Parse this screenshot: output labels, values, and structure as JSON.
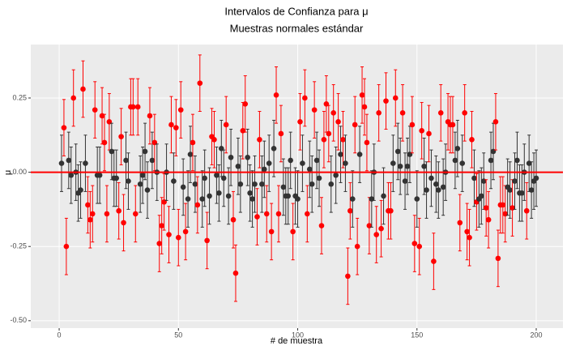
{
  "chart_data": {
    "type": "errorbar",
    "title": "Intervalos de Confianza para  μ",
    "subtitle": "Muestras normales estándar",
    "x_label": "# de muestra",
    "y_label": "μ",
    "x": [
      1,
      2,
      3,
      4,
      5,
      6,
      7,
      8,
      9,
      10,
      11,
      12,
      13,
      14,
      15,
      16,
      17,
      18,
      19,
      20,
      21,
      22,
      23,
      24,
      25,
      26,
      27,
      28,
      29,
      30,
      31,
      32,
      33,
      34,
      35,
      36,
      37,
      38,
      39,
      40,
      41,
      42,
      43,
      44,
      45,
      46,
      47,
      48,
      49,
      50,
      51,
      52,
      53,
      54,
      55,
      56,
      57,
      58,
      59,
      60,
      61,
      62,
      63,
      64,
      65,
      66,
      67,
      68,
      69,
      70,
      71,
      72,
      73,
      74,
      75,
      76,
      77,
      78,
      79,
      80,
      81,
      82,
      83,
      84,
      85,
      86,
      87,
      88,
      89,
      90,
      91,
      92,
      93,
      94,
      95,
      96,
      97,
      98,
      99,
      100,
      101,
      102,
      103,
      104,
      105,
      106,
      107,
      108,
      109,
      110,
      111,
      112,
      113,
      114,
      115,
      116,
      117,
      118,
      119,
      120,
      121,
      122,
      123,
      124,
      125,
      126,
      127,
      128,
      129,
      130,
      131,
      132,
      133,
      134,
      135,
      136,
      137,
      138,
      139,
      140,
      141,
      142,
      143,
      144,
      145,
      146,
      147,
      148,
      149,
      150,
      151,
      152,
      153,
      154,
      155,
      156,
      157,
      158,
      159,
      160,
      161,
      162,
      163,
      164,
      165,
      166,
      167,
      168,
      169,
      170,
      171,
      172,
      173,
      174,
      175,
      176,
      177,
      178,
      179,
      180,
      181,
      182,
      183,
      184,
      185,
      186,
      187,
      188,
      189,
      190,
      191,
      192,
      193,
      194,
      195,
      196,
      197,
      198,
      199,
      200
    ],
    "values": [
      0.03,
      0.15,
      -0.25,
      0.04,
      -0.01,
      0.25,
      0.0,
      -0.07,
      -0.06,
      0.28,
      0.03,
      -0.11,
      -0.16,
      -0.14,
      0.21,
      -0.01,
      -0.01,
      0.19,
      0.1,
      -0.14,
      0.17,
      0.07,
      -0.02,
      -0.02,
      -0.13,
      0.12,
      -0.17,
      0.04,
      -0.03,
      0.22,
      0.22,
      -0.14,
      0.22,
      -0.04,
      -0.01,
      0.07,
      -0.06,
      0.19,
      0.04,
      0.1,
      0.0,
      -0.24,
      -0.18,
      -0.1,
      0.0,
      -0.21,
      0.16,
      -0.03,
      0.15,
      -0.22,
      0.21,
      -0.05,
      -0.2,
      -0.09,
      0.06,
      0.1,
      -0.04,
      -0.11,
      0.3,
      -0.09,
      -0.02,
      -0.23,
      -0.08,
      0.12,
      0.11,
      -0.01,
      -0.07,
      0.08,
      -0.02,
      0.16,
      -0.08,
      0.05,
      -0.16,
      -0.34,
      0.02,
      -0.04,
      0.14,
      0.23,
      0.05,
      -0.07,
      -0.09,
      -0.04,
      -0.15,
      0.11,
      -0.04,
      0.01,
      -0.14,
      0.03,
      -0.2,
      0.08,
      0.26,
      -0.14,
      0.13,
      -0.05,
      -0.08,
      -0.08,
      0.04,
      -0.2,
      -0.08,
      -0.09,
      0.17,
      0.03,
      0.25,
      -0.14,
      0.01,
      -0.04,
      0.21,
      0.04,
      -0.02,
      -0.18,
      0.11,
      0.23,
      0.13,
      -0.04,
      0.2,
      -0.01,
      0.17,
      0.06,
      0.11,
      0.03,
      -0.35,
      -0.13,
      -0.09,
      0.16,
      -0.25,
      0.06,
      0.26,
      0.22,
      0.1,
      -0.18,
      -0.09,
      0.0,
      -0.21,
      0.2,
      -0.19,
      -0.08,
      0.24,
      -0.13,
      -0.13,
      0.03,
      0.25,
      0.07,
      0.02,
      0.2,
      -0.03,
      0.02,
      0.06,
      0.16,
      -0.24,
      -0.09,
      -0.25,
      0.14,
      0.02,
      -0.06,
      0.13,
      -0.02,
      -0.3,
      -0.04,
      -0.06,
      0.2,
      -0.05,
      0.0,
      0.17,
      0.16,
      0.16,
      0.04,
      0.08,
      -0.17,
      0.03,
      0.2,
      -0.2,
      -0.22,
      0.11,
      -0.02,
      -0.1,
      -0.09,
      -0.08,
      -0.03,
      -0.12,
      -0.16,
      0.04,
      0.07,
      0.17,
      -0.29,
      -0.11,
      -0.11,
      -0.14,
      -0.05,
      -0.06,
      -0.12,
      -0.03,
      0.04,
      -0.07,
      -0.07,
      0.0,
      -0.13,
      0.03,
      -0.06,
      -0.03,
      -0.02
    ],
    "error": 0.095,
    "color_hit": "#333333",
    "color_miss": "#ff0000",
    "hline": 0,
    "hline_color": "#ff0000",
    "xlim": [
      -11.9,
      211.2
    ],
    "ylim": [
      -0.525,
      0.43
    ],
    "xticks": [
      0,
      50,
      100,
      150,
      200
    ],
    "yticks": [
      {
        "value": -0.5,
        "label": "-0.50"
      },
      {
        "value": -0.25,
        "label": "-0.25"
      },
      {
        "value": 0,
        "label": "0.00"
      },
      {
        "value": 0.25,
        "label": "0.25"
      }
    ],
    "grid": true
  }
}
